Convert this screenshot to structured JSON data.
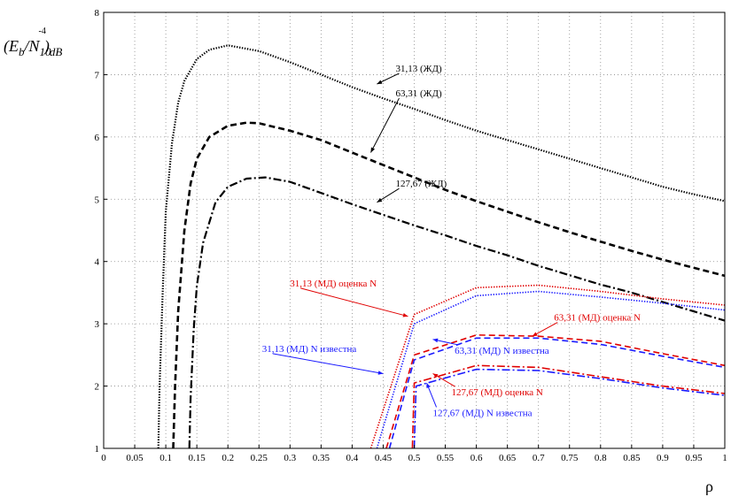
{
  "chart_data": {
    "type": "line",
    "xlabel": "ρ",
    "ylabel": "(E_b/N_10^-4)_dB",
    "xlim": [
      0,
      1
    ],
    "ylim": [
      1,
      8
    ],
    "xticks": [
      0,
      0.05,
      0.1,
      0.15,
      0.2,
      0.25,
      0.3,
      0.35,
      0.4,
      0.45,
      0.5,
      0.55,
      0.6,
      0.65,
      0.7,
      0.75,
      0.8,
      0.85,
      0.9,
      0.95,
      1
    ],
    "yticks": [
      1,
      2,
      3,
      4,
      5,
      6,
      7,
      8
    ],
    "grid": true,
    "colors": {
      "black": "#000000",
      "red": "#e00000",
      "blue": "#1a1aff"
    },
    "series": [
      {
        "name": "31,13 (ЖД)",
        "color": "black",
        "dash": "dotted",
        "points": [
          [
            0.088,
            1.0
          ],
          [
            0.09,
            2.0
          ],
          [
            0.095,
            3.5
          ],
          [
            0.1,
            4.8
          ],
          [
            0.11,
            5.9
          ],
          [
            0.12,
            6.55
          ],
          [
            0.13,
            6.9
          ],
          [
            0.15,
            7.25
          ],
          [
            0.17,
            7.4
          ],
          [
            0.2,
            7.47
          ],
          [
            0.25,
            7.38
          ],
          [
            0.3,
            7.2
          ],
          [
            0.35,
            7.0
          ],
          [
            0.4,
            6.8
          ],
          [
            0.45,
            6.62
          ],
          [
            0.5,
            6.45
          ],
          [
            0.55,
            6.27
          ],
          [
            0.6,
            6.1
          ],
          [
            0.65,
            5.95
          ],
          [
            0.7,
            5.8
          ],
          [
            0.75,
            5.65
          ],
          [
            0.8,
            5.5
          ],
          [
            0.85,
            5.35
          ],
          [
            0.9,
            5.2
          ],
          [
            0.95,
            5.08
          ],
          [
            1.0,
            4.97
          ]
        ]
      },
      {
        "name": "63,31  (ЖД)",
        "color": "black",
        "dash": "dashed",
        "points": [
          [
            0.112,
            1.0
          ],
          [
            0.115,
            2.0
          ],
          [
            0.12,
            3.2
          ],
          [
            0.13,
            4.5
          ],
          [
            0.14,
            5.25
          ],
          [
            0.15,
            5.65
          ],
          [
            0.17,
            6.0
          ],
          [
            0.2,
            6.18
          ],
          [
            0.23,
            6.23
          ],
          [
            0.25,
            6.22
          ],
          [
            0.3,
            6.1
          ],
          [
            0.35,
            5.95
          ],
          [
            0.4,
            5.75
          ],
          [
            0.45,
            5.55
          ],
          [
            0.5,
            5.35
          ],
          [
            0.55,
            5.15
          ],
          [
            0.6,
            4.97
          ],
          [
            0.65,
            4.8
          ],
          [
            0.7,
            4.63
          ],
          [
            0.75,
            4.47
          ],
          [
            0.8,
            4.32
          ],
          [
            0.85,
            4.17
          ],
          [
            0.9,
            4.03
          ],
          [
            0.95,
            3.9
          ],
          [
            1.0,
            3.77
          ]
        ]
      },
      {
        "name": "127,67 (ЖД)",
        "color": "black",
        "dash": "dashdot",
        "points": [
          [
            0.138,
            1.0
          ],
          [
            0.14,
            1.8
          ],
          [
            0.145,
            2.9
          ],
          [
            0.15,
            3.6
          ],
          [
            0.16,
            4.3
          ],
          [
            0.18,
            4.95
          ],
          [
            0.2,
            5.2
          ],
          [
            0.23,
            5.33
          ],
          [
            0.26,
            5.35
          ],
          [
            0.3,
            5.28
          ],
          [
            0.35,
            5.1
          ],
          [
            0.4,
            4.92
          ],
          [
            0.45,
            4.75
          ],
          [
            0.5,
            4.58
          ],
          [
            0.55,
            4.42
          ],
          [
            0.6,
            4.25
          ],
          [
            0.65,
            4.1
          ],
          [
            0.7,
            3.93
          ],
          [
            0.75,
            3.78
          ],
          [
            0.8,
            3.63
          ],
          [
            0.85,
            3.5
          ],
          [
            0.9,
            3.35
          ],
          [
            0.95,
            3.2
          ],
          [
            1.0,
            3.05
          ]
        ]
      },
      {
        "name": "31,13 (МД) оценка N",
        "color": "red",
        "dash": "dotted",
        "points": [
          [
            0.43,
            1.0
          ],
          [
            0.5,
            3.15
          ],
          [
            0.6,
            3.58
          ],
          [
            0.7,
            3.62
          ],
          [
            0.8,
            3.52
          ],
          [
            0.9,
            3.4
          ],
          [
            1.0,
            3.3
          ]
        ]
      },
      {
        "name": "31,13 (МД) N известна",
        "color": "blue",
        "dash": "dotted",
        "points": [
          [
            0.44,
            1.0
          ],
          [
            0.5,
            3.0
          ],
          [
            0.6,
            3.45
          ],
          [
            0.7,
            3.52
          ],
          [
            0.8,
            3.43
          ],
          [
            0.9,
            3.33
          ],
          [
            1.0,
            3.22
          ]
        ]
      },
      {
        "name": "63,31 (МД) оценка N",
        "color": "red",
        "dash": "dashed",
        "points": [
          [
            0.455,
            1.0
          ],
          [
            0.5,
            2.5
          ],
          [
            0.6,
            2.82
          ],
          [
            0.7,
            2.8
          ],
          [
            0.8,
            2.72
          ],
          [
            0.9,
            2.52
          ],
          [
            1.0,
            2.33
          ]
        ]
      },
      {
        "name": "63,31 (МД) N известна",
        "color": "blue",
        "dash": "dashed",
        "points": [
          [
            0.46,
            1.0
          ],
          [
            0.5,
            2.42
          ],
          [
            0.6,
            2.77
          ],
          [
            0.7,
            2.77
          ],
          [
            0.8,
            2.67
          ],
          [
            0.9,
            2.48
          ],
          [
            1.0,
            2.3
          ]
        ]
      },
      {
        "name": "127,67 (МД) оценка N",
        "color": "red",
        "dash": "dashdot",
        "points": [
          [
            0.497,
            1.0
          ],
          [
            0.5,
            2.05
          ],
          [
            0.6,
            2.33
          ],
          [
            0.7,
            2.3
          ],
          [
            0.8,
            2.15
          ],
          [
            0.9,
            2.0
          ],
          [
            1.0,
            1.88
          ]
        ]
      },
      {
        "name": "127,67 (МД) N известна",
        "color": "blue",
        "dash": "dashdot",
        "points": [
          [
            0.5,
            1.0
          ],
          [
            0.503,
            2.0
          ],
          [
            0.6,
            2.27
          ],
          [
            0.7,
            2.25
          ],
          [
            0.8,
            2.12
          ],
          [
            0.9,
            1.97
          ],
          [
            1.0,
            1.85
          ]
        ]
      }
    ],
    "annotations": [
      {
        "text": "31,13 (ЖД)",
        "color": "black",
        "text_at": [
          0.47,
          7.05
        ],
        "arrow_to": [
          0.44,
          6.85
        ]
      },
      {
        "text": "63,31  (ЖД)",
        "color": "black",
        "text_at": [
          0.47,
          6.65
        ],
        "arrow_to": [
          0.43,
          5.75
        ]
      },
      {
        "text": "127,67 (ЖД)",
        "color": "black",
        "text_at": [
          0.47,
          5.2
        ],
        "arrow_to": [
          0.44,
          4.95
        ]
      },
      {
        "text": "31,13 (МД) оценка N",
        "color": "red",
        "text_at": [
          0.3,
          3.6
        ],
        "arrow_to": [
          0.49,
          3.12
        ]
      },
      {
        "text": "63,31 (МД) оценка N",
        "color": "red",
        "text_at": [
          0.725,
          3.05
        ],
        "arrow_to": [
          0.69,
          2.8
        ]
      },
      {
        "text": "31,13 (МД) N известна",
        "color": "blue",
        "text_at": [
          0.255,
          2.55
        ],
        "arrow_to": [
          0.45,
          2.2
        ]
      },
      {
        "text": "63,31 (МД) N известна",
        "color": "blue",
        "text_at": [
          0.565,
          2.52
        ],
        "arrow_to": [
          0.53,
          2.75
        ]
      },
      {
        "text": "127,67 (МД) оценка N",
        "color": "red",
        "text_at": [
          0.56,
          1.85
        ],
        "arrow_to": [
          0.53,
          2.2
        ]
      },
      {
        "text": "127,67 (МД) N известна",
        "color": "blue",
        "text_at": [
          0.53,
          1.52
        ],
        "arrow_to": [
          0.52,
          2.05
        ]
      }
    ]
  }
}
